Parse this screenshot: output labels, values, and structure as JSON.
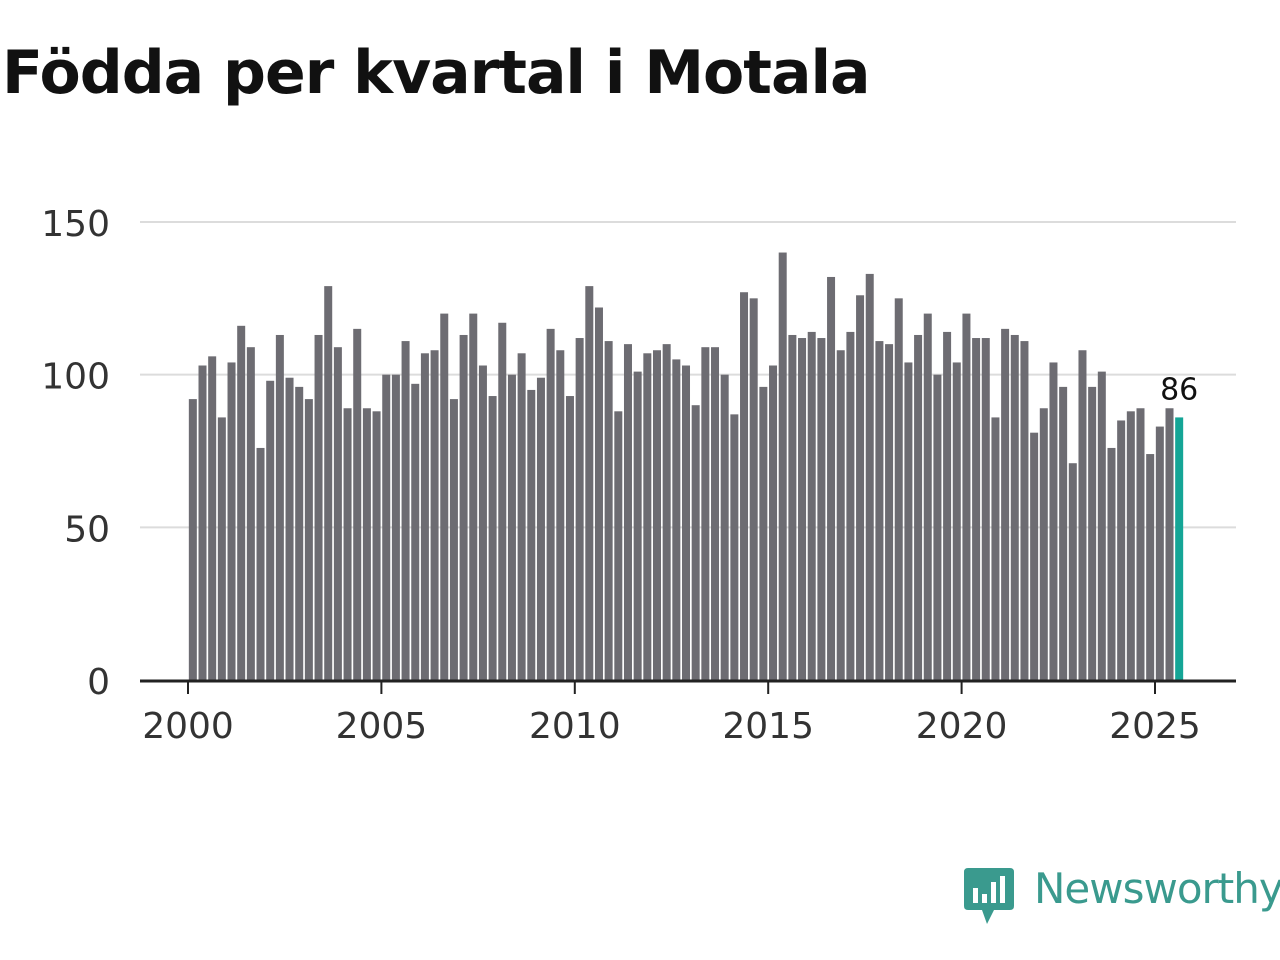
{
  "title": "Födda per kvartal i Motala",
  "brand": {
    "name": "Newsworthy",
    "icon": "newsworthy-logo-icon",
    "color": "#3a9a8e"
  },
  "chart_data": {
    "type": "bar",
    "title": "Födda per kvartal i Motala",
    "xlabel": "",
    "ylabel": "",
    "ylim": [
      0,
      150
    ],
    "yticks": [
      "0",
      "50",
      "100",
      "150"
    ],
    "xticks": [
      "2000",
      "2005",
      "2010",
      "2015",
      "2020",
      "2025"
    ],
    "grid": true,
    "bar_color": "#6d6c72",
    "highlight_color": "#14a596",
    "start_year": 2000,
    "series": [
      {
        "name": "Födda",
        "values": [
          92,
          103,
          106,
          86,
          104,
          116,
          109,
          76,
          98,
          113,
          99,
          96,
          92,
          113,
          129,
          109,
          89,
          115,
          89,
          88,
          100,
          100,
          111,
          97,
          107,
          108,
          120,
          92,
          113,
          120,
          103,
          93,
          117,
          100,
          107,
          95,
          99,
          115,
          108,
          93,
          112,
          129,
          122,
          111,
          88,
          110,
          101,
          107,
          108,
          110,
          105,
          103,
          90,
          109,
          109,
          100,
          87,
          127,
          125,
          96,
          103,
          140,
          113,
          112,
          114,
          112,
          132,
          108,
          114,
          126,
          133,
          111,
          110,
          125,
          104,
          113,
          120,
          100,
          114,
          104,
          120,
          112,
          112,
          86,
          115,
          113,
          111,
          81,
          89,
          104,
          96,
          71,
          108,
          96,
          101,
          76,
          85,
          88,
          89,
          74,
          83,
          89,
          86
        ]
      }
    ],
    "highlight_label": "86"
  }
}
